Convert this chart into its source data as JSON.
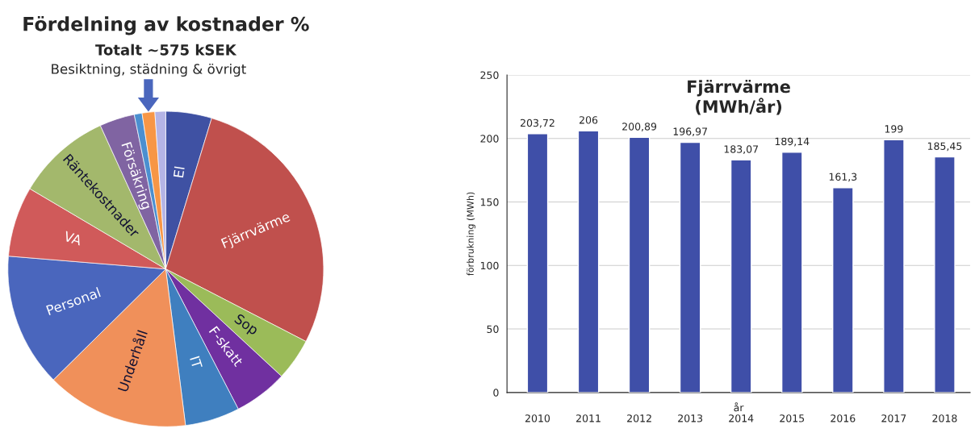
{
  "chart_data": [
    {
      "type": "pie",
      "title": "Fördelning av kostnader %",
      "subtitle": "Totalt ~575 kSEK",
      "categories": [
        "El",
        "Fjärrvärme",
        "Sop",
        "F-skatt",
        "IT",
        "Underhåll",
        "Personal",
        "VA",
        "Räntekostnader",
        "Försäkring",
        null,
        null,
        null
      ],
      "values": [
        4.7,
        27.9,
        4.3,
        5.5,
        5.6,
        14.6,
        13.7,
        7.2,
        9.7,
        3.6,
        0.8,
        1.3,
        1.1
      ],
      "colors": [
        "#3f51a3",
        "#c0504d",
        "#9bbb59",
        "#7030a0",
        "#3f7fbf",
        "#f0905a",
        "#4a66bd",
        "#d05a5a",
        "#a3b86c",
        "#8064a2",
        "#4b8fd0",
        "#f79646",
        "#b4b4e6"
      ],
      "annotations": [
        "Besiktning, städning & övrigt"
      ]
    },
    {
      "type": "bar",
      "title": "Fjärrvärme\n(MWh/år)",
      "xlabel": "år",
      "ylabel": "förbrukning (MWh)",
      "categories": [
        "2010",
        "2011",
        "2012",
        "2013",
        "2014",
        "2015",
        "2016",
        "2017",
        "2018"
      ],
      "values": [
        203.72,
        206,
        200.89,
        196.97,
        183.07,
        189.14,
        161.3,
        199,
        185.45
      ],
      "value_labels": [
        "203,72",
        "206",
        "200,89",
        "196,97",
        "183,07",
        "189,14",
        "161,3",
        "199",
        "185,45"
      ],
      "color": "#3f4fa8",
      "ylim": [
        0,
        250
      ],
      "yticks": [
        0,
        50,
        100,
        150,
        200,
        250
      ],
      "grid": "y"
    }
  ]
}
